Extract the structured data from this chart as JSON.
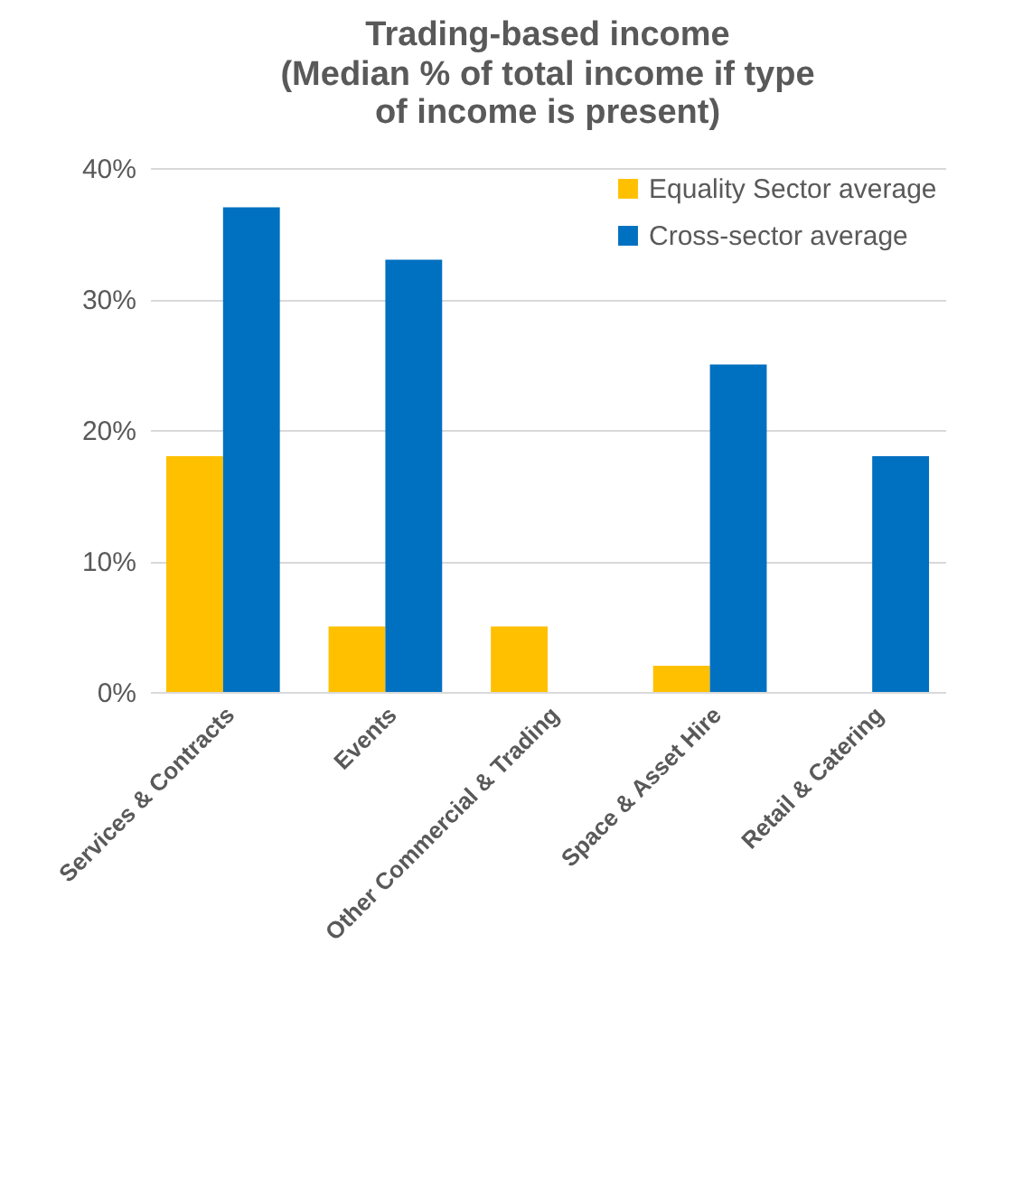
{
  "chart_data": {
    "type": "bar",
    "title": "Trading-based income",
    "subtitle": "(Median % of total income if type of income is present)",
    "categories": [
      "Services & Contracts",
      "Events",
      "Other Commercial & Trading",
      "Space & Asset Hire",
      "Retail & Catering"
    ],
    "series": [
      {
        "name": "Equality Sector average",
        "color": "#ffc000",
        "values": [
          18,
          5,
          5,
          2,
          null
        ]
      },
      {
        "name": "Cross-sector average",
        "color": "#0070c0",
        "values": [
          37,
          33,
          null,
          25,
          18
        ]
      }
    ],
    "ylim": [
      0,
      40
    ],
    "yticks": [
      {
        "value": 0,
        "label": "0%"
      },
      {
        "value": 10,
        "label": "10%"
      },
      {
        "value": 20,
        "label": "20%"
      },
      {
        "value": 30,
        "label": "30%"
      },
      {
        "value": 40,
        "label": "40%"
      }
    ],
    "grid": "y",
    "legend": "top right"
  }
}
